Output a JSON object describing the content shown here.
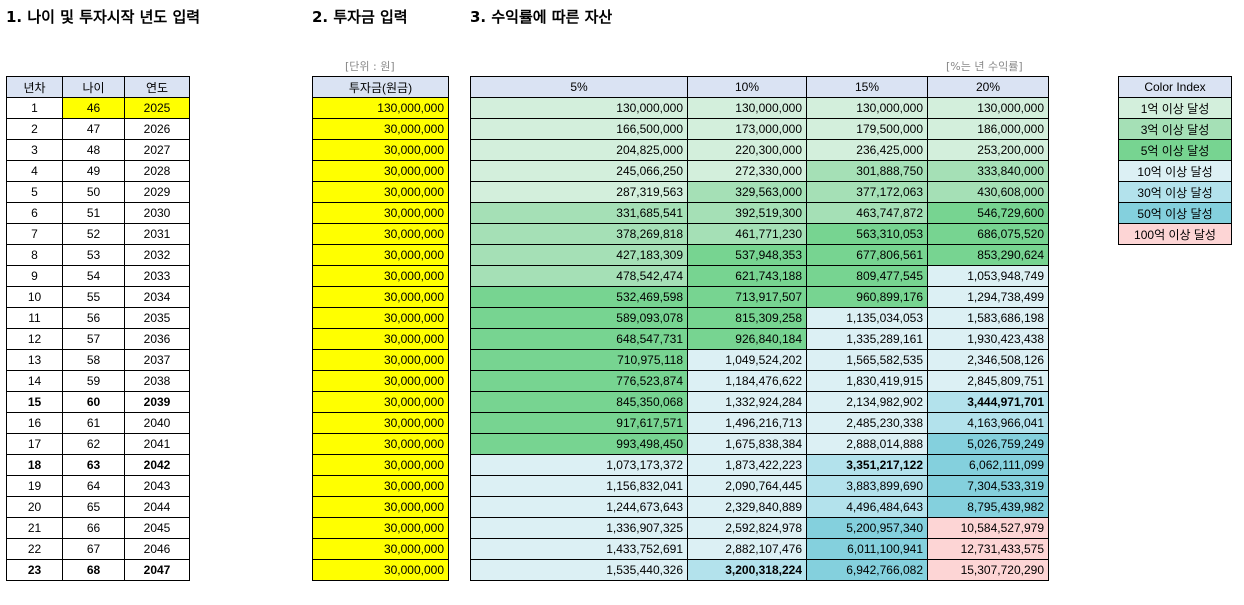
{
  "titles": {
    "t1": "1. 나이 및 투자시작 년도 입력",
    "t2": "2. 투자금 입력",
    "t3": "3. 수익률에 따른 자산"
  },
  "notes": {
    "unit": "[단위 : 원]",
    "rate": "[%는 년 수익률]"
  },
  "left_table": {
    "headers": [
      "년차",
      "나이",
      "연도"
    ],
    "rows": [
      [
        "1",
        "46",
        "2025"
      ],
      [
        "2",
        "47",
        "2026"
      ],
      [
        "3",
        "48",
        "2027"
      ],
      [
        "4",
        "49",
        "2028"
      ],
      [
        "5",
        "50",
        "2029"
      ],
      [
        "6",
        "51",
        "2030"
      ],
      [
        "7",
        "52",
        "2031"
      ],
      [
        "8",
        "53",
        "2032"
      ],
      [
        "9",
        "54",
        "2033"
      ],
      [
        "10",
        "55",
        "2034"
      ],
      [
        "11",
        "56",
        "2035"
      ],
      [
        "12",
        "57",
        "2036"
      ],
      [
        "13",
        "58",
        "2037"
      ],
      [
        "14",
        "59",
        "2038"
      ],
      [
        "15",
        "60",
        "2039"
      ],
      [
        "16",
        "61",
        "2040"
      ],
      [
        "17",
        "62",
        "2041"
      ],
      [
        "18",
        "63",
        "2042"
      ],
      [
        "19",
        "64",
        "2043"
      ],
      [
        "20",
        "65",
        "2044"
      ],
      [
        "21",
        "66",
        "2045"
      ],
      [
        "22",
        "67",
        "2046"
      ],
      [
        "23",
        "68",
        "2047"
      ]
    ],
    "bold_rows": [
      15,
      18,
      23
    ]
  },
  "invest_table": {
    "header": "투자금(원금)",
    "values": [
      "130,000,000",
      "30,000,000",
      "30,000,000",
      "30,000,000",
      "30,000,000",
      "30,000,000",
      "30,000,000",
      "30,000,000",
      "30,000,000",
      "30,000,000",
      "30,000,000",
      "30,000,000",
      "30,000,000",
      "30,000,000",
      "30,000,000",
      "30,000,000",
      "30,000,000",
      "30,000,000",
      "30,000,000",
      "30,000,000",
      "30,000,000",
      "30,000,000",
      "30,000,000"
    ]
  },
  "asset_table": {
    "headers": [
      "5%",
      "10%",
      "15%",
      "20%"
    ],
    "rows": [
      [
        "130,000,000",
        "130,000,000",
        "130,000,000",
        "130,000,000"
      ],
      [
        "166,500,000",
        "173,000,000",
        "179,500,000",
        "186,000,000"
      ],
      [
        "204,825,000",
        "220,300,000",
        "236,425,000",
        "253,200,000"
      ],
      [
        "245,066,250",
        "272,330,000",
        "301,888,750",
        "333,840,000"
      ],
      [
        "287,319,563",
        "329,563,000",
        "377,172,063",
        "430,608,000"
      ],
      [
        "331,685,541",
        "392,519,300",
        "463,747,872",
        "546,729,600"
      ],
      [
        "378,269,818",
        "461,771,230",
        "563,310,053",
        "686,075,520"
      ],
      [
        "427,183,309",
        "537,948,353",
        "677,806,561",
        "853,290,624"
      ],
      [
        "478,542,474",
        "621,743,188",
        "809,477,545",
        "1,053,948,749"
      ],
      [
        "532,469,598",
        "713,917,507",
        "960,899,176",
        "1,294,738,499"
      ],
      [
        "589,093,078",
        "815,309,258",
        "1,135,034,053",
        "1,583,686,198"
      ],
      [
        "648,547,731",
        "926,840,184",
        "1,335,289,161",
        "1,930,423,438"
      ],
      [
        "710,975,118",
        "1,049,524,202",
        "1,565,582,535",
        "2,346,508,126"
      ],
      [
        "776,523,874",
        "1,184,476,622",
        "1,830,419,915",
        "2,845,809,751"
      ],
      [
        "845,350,068",
        "1,332,924,284",
        "2,134,982,902",
        "3,444,971,701"
      ],
      [
        "917,617,571",
        "1,496,216,713",
        "2,485,230,338",
        "4,163,966,041"
      ],
      [
        "993,498,450",
        "1,675,838,384",
        "2,888,014,888",
        "5,026,759,249"
      ],
      [
        "1,073,173,372",
        "1,873,422,223",
        "3,351,217,122",
        "6,062,111,099"
      ],
      [
        "1,156,832,041",
        "2,090,764,445",
        "3,883,899,690",
        "7,304,533,319"
      ],
      [
        "1,244,673,643",
        "2,329,840,889",
        "4,496,484,643",
        "8,795,439,982"
      ],
      [
        "1,336,907,325",
        "2,592,824,978",
        "5,200,957,340",
        "10,584,527,979"
      ],
      [
        "1,433,752,691",
        "2,882,107,476",
        "6,011,100,941",
        "12,731,433,575"
      ],
      [
        "1,535,440,326",
        "3,200,318,224",
        "6,942,766,082",
        "15,307,720,290"
      ]
    ],
    "bold_cells": [
      [
        15,
        4
      ],
      [
        18,
        3
      ],
      [
        23,
        2
      ]
    ]
  },
  "color_index": {
    "header": "Color Index",
    "items": [
      {
        "label": "1억 이상 달성",
        "color": "#d3efdc"
      },
      {
        "label": "3억 이상 달성",
        "color": "#a5e0b6"
      },
      {
        "label": "5억 이상 달성",
        "color": "#77d491"
      },
      {
        "label": "10억 이상 달성",
        "color": "#dcf0f4"
      },
      {
        "label": "30억 이상 달성",
        "color": "#b3e2ec"
      },
      {
        "label": "50억 이상 달성",
        "color": "#84d0dd"
      },
      {
        "label": "100억 이상 달성",
        "color": "#fdd5d5"
      }
    ]
  }
}
